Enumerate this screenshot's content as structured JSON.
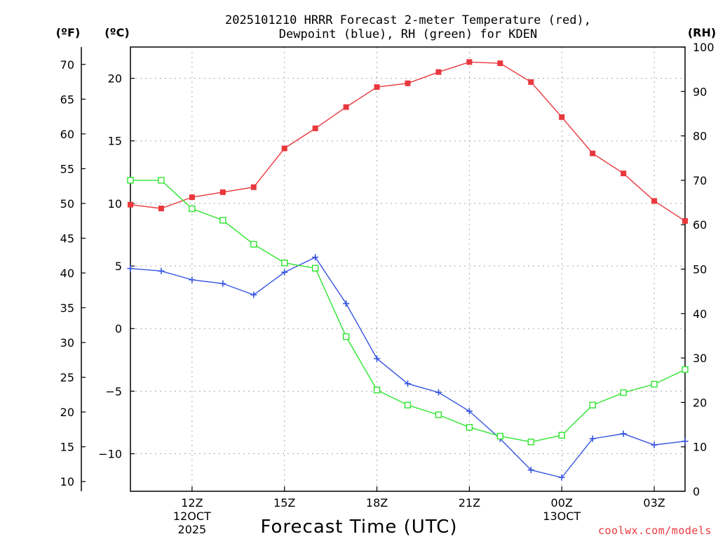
{
  "chart_data": {
    "type": "line",
    "title_lines": [
      "2025101210 HRRR Forecast 2-meter Temperature (red),",
      "Dewpoint (blue), RH (green) for KDEN"
    ],
    "units": {
      "fahrenheit": "(ºF)",
      "celsius": "(ºC)",
      "rh": "(RH)"
    },
    "xlabel": "Forecast Time (UTC)",
    "credit": "coolwx.com/models",
    "x_hours": [
      10,
      11,
      12,
      13,
      14,
      15,
      16,
      17,
      18,
      19,
      20,
      21,
      22,
      23,
      24,
      25,
      26,
      27,
      28
    ],
    "xlim": [
      10,
      28
    ],
    "x_ticks": [
      {
        "hour": 12,
        "lines": [
          "12Z",
          "12OCT",
          "2025"
        ]
      },
      {
        "hour": 15,
        "lines": [
          "15Z"
        ]
      },
      {
        "hour": 18,
        "lines": [
          "18Z"
        ]
      },
      {
        "hour": 21,
        "lines": [
          "21Z"
        ]
      },
      {
        "hour": 24,
        "lines": [
          "00Z",
          "13OCT"
        ]
      },
      {
        "hour": 27,
        "lines": [
          "03Z"
        ]
      }
    ],
    "celsius_axis": {
      "ylim": [
        -13.0,
        22.5
      ],
      "ticks": [
        "20",
        "15",
        "10",
        "5",
        "0",
        "−5",
        "−10"
      ],
      "tick_values": [
        20,
        15,
        10,
        5,
        0,
        -5,
        -10
      ]
    },
    "fahrenheit_axis": {
      "ylim": [
        8.6,
        72.5
      ],
      "ticks": [
        "70",
        "65",
        "60",
        "55",
        "50",
        "45",
        "40",
        "35",
        "30",
        "25",
        "20",
        "15",
        "10"
      ],
      "tick_values": [
        70,
        65,
        60,
        55,
        50,
        45,
        40,
        35,
        30,
        25,
        20,
        15,
        10
      ]
    },
    "rh_axis": {
      "ylim": [
        0,
        100
      ],
      "ticks": [
        "100",
        "90",
        "80",
        "70",
        "60",
        "50",
        "40",
        "30",
        "20",
        "10",
        "0"
      ],
      "tick_values": [
        100,
        90,
        80,
        70,
        60,
        50,
        40,
        30,
        20,
        10,
        0
      ]
    },
    "series": [
      {
        "name": "2-meter Temperature",
        "axis": "celsius",
        "color": "#e8383d",
        "marker": "filled-square",
        "values": [
          9.9,
          9.6,
          10.5,
          10.9,
          11.3,
          14.4,
          16.0,
          17.7,
          19.3,
          19.6,
          20.5,
          21.3,
          21.2,
          19.7,
          16.9,
          14.0,
          12.4,
          10.2,
          8.6
        ]
      },
      {
        "name": "Dewpoint",
        "axis": "celsius",
        "color": "#3454e0",
        "marker": "plus",
        "values": [
          4.8,
          4.6,
          3.9,
          3.6,
          2.7,
          4.5,
          5.7,
          2.0,
          -2.4,
          -4.4,
          -5.1,
          -6.6,
          -8.8,
          -11.3,
          -11.9,
          -8.8,
          -8.4,
          -9.3,
          -9.0
        ]
      },
      {
        "name": "Relative Humidity",
        "axis": "rh",
        "color": "#2ee52e",
        "marker": "open-square",
        "values": [
          70,
          70,
          63.6,
          61,
          55.6,
          51.4,
          50.2,
          34.8,
          22.8,
          19.4,
          17.2,
          14.4,
          12.4,
          11.1,
          12.6,
          19.4,
          22.2,
          24.1,
          27.4
        ]
      }
    ]
  }
}
